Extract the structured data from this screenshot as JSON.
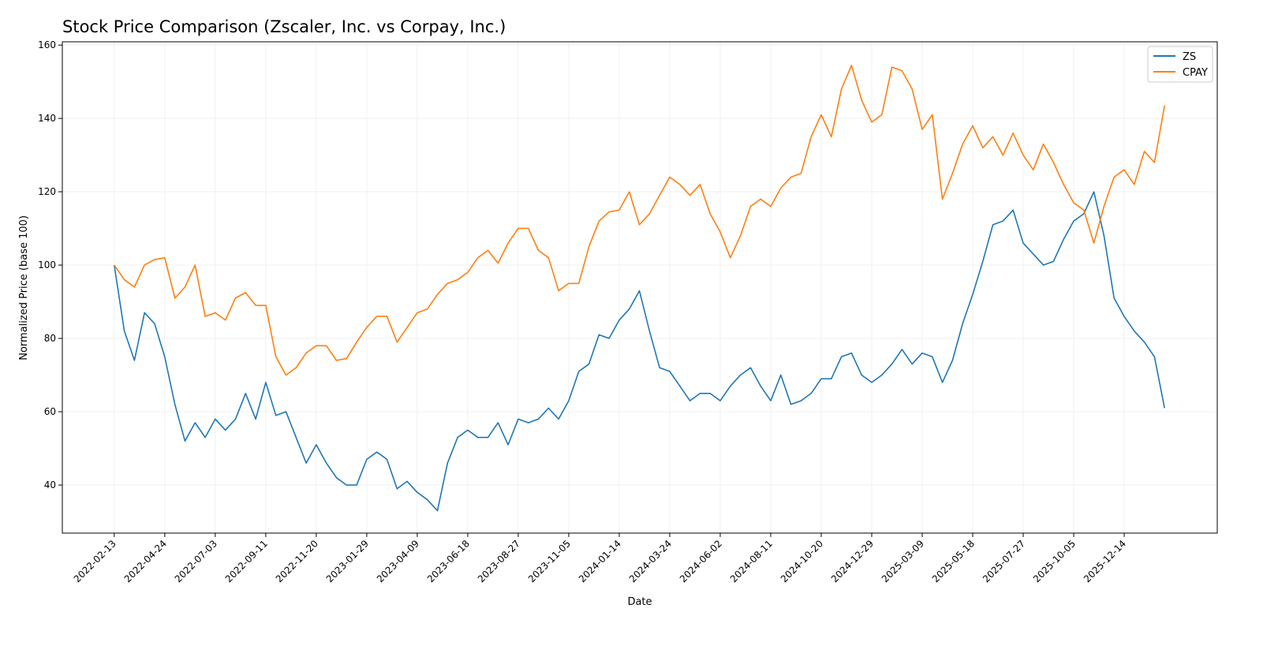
{
  "chart_data": {
    "type": "line",
    "title": "Stock Price Comparison (Zscaler, Inc. vs Corpay, Inc.)",
    "xlabel": "Date",
    "ylabel": "Normalized Price (base 100)",
    "xlim": [
      "2021-12-03",
      "2026-04-22"
    ],
    "ylim": [
      26.9,
      160.9
    ],
    "grid": true,
    "legend_position": "top-right",
    "x_ticks": [
      "2022-02-13",
      "2022-04-24",
      "2022-07-03",
      "2022-09-11",
      "2022-11-20",
      "2023-01-29",
      "2023-04-09",
      "2023-06-18",
      "2023-08-27",
      "2023-11-05",
      "2024-01-14",
      "2024-03-24",
      "2024-06-02",
      "2024-08-11",
      "2024-10-20",
      "2024-12-29",
      "2025-03-09",
      "2025-05-18",
      "2025-07-27",
      "2025-10-05",
      "2025-12-14"
    ],
    "y_ticks": [
      40,
      60,
      80,
      100,
      120,
      140,
      160
    ],
    "x": [
      "2022-02-13",
      "2022-02-27",
      "2022-03-13",
      "2022-03-27",
      "2022-04-10",
      "2022-04-24",
      "2022-05-08",
      "2022-05-22",
      "2022-06-05",
      "2022-06-19",
      "2022-07-03",
      "2022-07-17",
      "2022-07-31",
      "2022-08-14",
      "2022-08-28",
      "2022-09-11",
      "2022-09-25",
      "2022-10-09",
      "2022-10-23",
      "2022-11-06",
      "2022-11-20",
      "2022-12-04",
      "2022-12-18",
      "2023-01-01",
      "2023-01-15",
      "2023-01-29",
      "2023-02-12",
      "2023-02-26",
      "2023-03-12",
      "2023-03-26",
      "2023-04-09",
      "2023-04-23",
      "2023-05-07",
      "2023-05-21",
      "2023-06-04",
      "2023-06-18",
      "2023-07-02",
      "2023-07-16",
      "2023-07-30",
      "2023-08-13",
      "2023-08-27",
      "2023-09-10",
      "2023-09-24",
      "2023-10-08",
      "2023-10-22",
      "2023-11-05",
      "2023-11-19",
      "2023-12-03",
      "2023-12-17",
      "2023-12-31",
      "2024-01-14",
      "2024-01-28",
      "2024-02-11",
      "2024-02-25",
      "2024-03-10",
      "2024-03-24",
      "2024-04-07",
      "2024-04-21",
      "2024-05-05",
      "2024-05-19",
      "2024-06-02",
      "2024-06-16",
      "2024-06-30",
      "2024-07-14",
      "2024-07-28",
      "2024-08-11",
      "2024-08-25",
      "2024-09-08",
      "2024-09-22",
      "2024-10-06",
      "2024-10-20",
      "2024-11-03",
      "2024-11-17",
      "2024-12-01",
      "2024-12-15",
      "2024-12-29",
      "2025-01-12",
      "2025-01-26",
      "2025-02-09",
      "2025-02-23",
      "2025-03-09",
      "2025-03-23",
      "2025-04-06",
      "2025-04-20",
      "2025-05-04",
      "2025-05-18",
      "2025-06-01",
      "2025-06-15",
      "2025-06-29",
      "2025-07-13",
      "2025-07-27",
      "2025-08-10",
      "2025-08-24",
      "2025-09-07",
      "2025-09-21",
      "2025-10-05",
      "2025-10-19",
      "2025-11-02",
      "2025-11-16",
      "2025-11-30",
      "2025-12-14",
      "2025-12-28",
      "2026-01-11",
      "2026-01-25",
      "2026-02-08"
    ],
    "series": [
      {
        "name": "ZS",
        "color": "#1f77b4",
        "values": [
          100,
          82,
          74,
          87,
          84,
          75,
          62,
          52,
          57,
          53,
          58,
          55,
          58,
          65,
          58,
          68,
          59,
          60,
          53,
          46,
          51,
          46,
          42,
          40,
          40,
          47,
          49,
          47,
          39,
          41,
          38,
          36,
          33,
          46,
          53,
          55,
          53,
          53,
          57,
          51,
          58,
          57,
          58,
          61,
          58,
          63,
          71,
          73,
          81,
          80,
          85,
          88,
          93,
          82,
          72,
          71,
          67,
          63,
          65,
          65,
          63,
          67,
          70,
          72,
          67,
          63,
          70,
          62,
          63,
          65,
          69,
          69,
          75,
          76,
          70,
          68,
          70,
          73,
          77,
          73,
          76,
          75,
          68,
          74,
          84,
          92,
          101,
          111,
          112,
          115,
          106,
          103,
          100,
          101,
          107,
          112,
          114,
          120,
          108,
          91,
          86,
          82,
          79,
          75,
          61
        ]
      },
      {
        "name": "CPAY",
        "color": "#ff7f0e",
        "values": [
          100,
          96,
          94,
          100,
          101.5,
          102,
          91,
          94,
          100,
          86,
          87,
          85,
          91,
          92.5,
          89,
          89,
          75,
          70,
          72,
          76,
          78,
          78,
          74,
          74.5,
          79,
          83,
          86,
          86,
          79,
          83,
          87,
          88,
          92,
          95,
          96,
          98,
          102,
          104,
          100.5,
          106,
          110,
          110,
          104,
          102,
          93,
          95,
          95,
          105,
          112,
          114.5,
          115,
          120,
          111,
          114,
          119,
          124,
          122,
          119,
          122,
          114,
          109,
          102,
          108,
          116,
          118,
          116,
          121,
          124,
          125,
          135,
          141,
          135,
          148,
          154.5,
          145,
          139,
          141,
          154,
          153,
          148,
          137,
          141,
          118,
          125,
          133,
          138,
          132,
          135,
          130,
          136,
          130,
          126,
          133,
          128,
          122,
          117,
          115,
          106,
          116,
          124,
          126,
          122,
          131,
          128,
          143.5
        ]
      }
    ]
  }
}
